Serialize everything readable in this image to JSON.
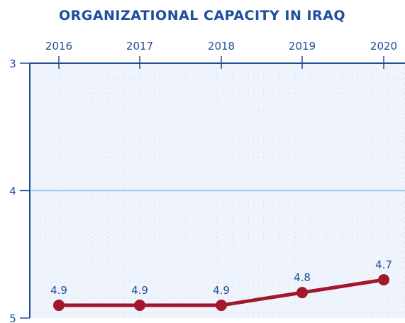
{
  "chart_data": {
    "type": "line",
    "title": "ORGANIZATIONAL CAPACITY IN IRAQ",
    "xlabel": "",
    "ylabel": "",
    "categories": [
      "2016",
      "2017",
      "2018",
      "2019",
      "2020"
    ],
    "x_axis_position": "top",
    "y_inverted": true,
    "ylim": [
      3,
      5
    ],
    "yticks": [
      "3",
      "4",
      "5"
    ],
    "series": [
      {
        "values": [
          4.9,
          4.9,
          4.9,
          4.8,
          4.7
        ],
        "labels": [
          "4.9",
          "4.9",
          "4.9",
          "4.8",
          "4.7"
        ]
      }
    ],
    "grid": true
  },
  "colors": {
    "title": "#1f4e9c",
    "axis_text": "#1f4e9c",
    "plot_background": "#eef3fc",
    "axis_line": "#1f4e9c",
    "midline": "#9dc3e6",
    "grid_dots": "#c9d6ea",
    "series": "#a3162c"
  }
}
